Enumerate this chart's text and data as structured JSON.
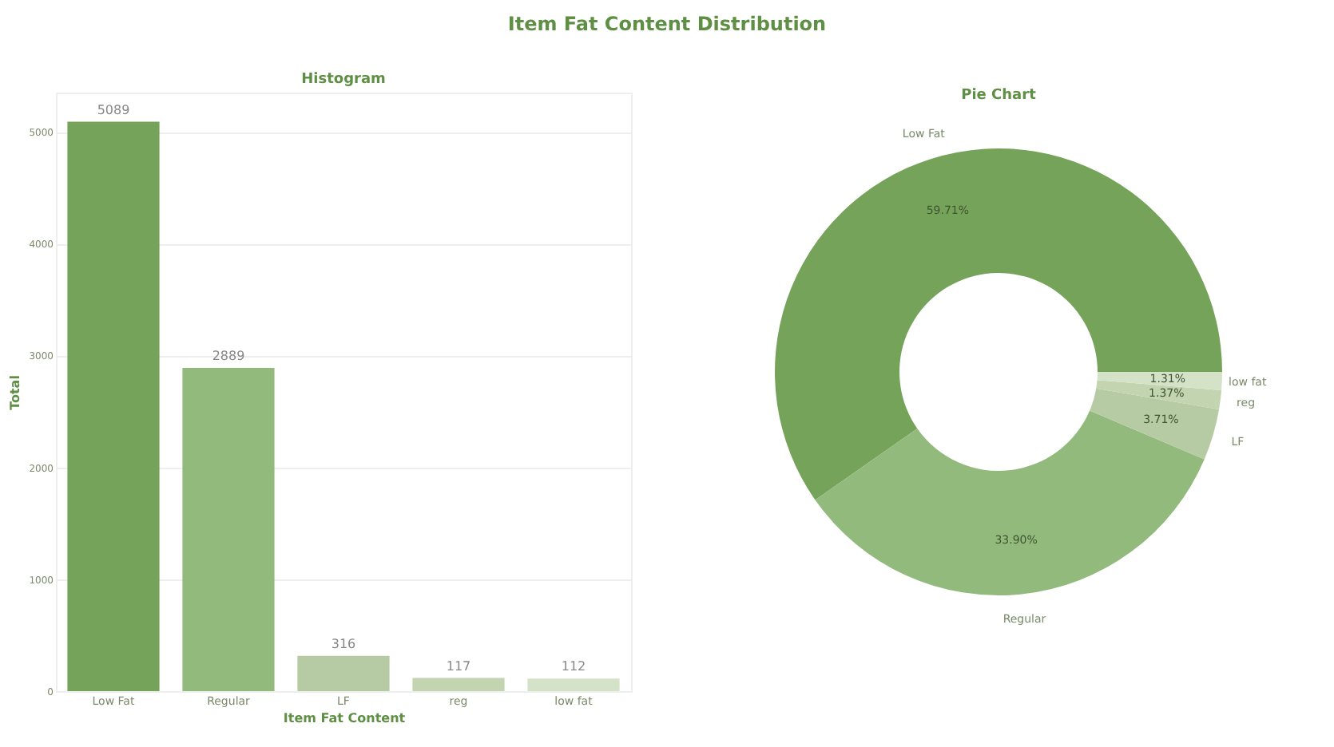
{
  "chart_data": [
    {
      "type": "other",
      "title": "Item Fat Content Distribution"
    },
    {
      "type": "bar",
      "title": "Histogram",
      "xlabel": "Item Fat Content",
      "ylabel": "Total",
      "categories": [
        "Low Fat",
        "Regular",
        "LF",
        "reg",
        "low fat"
      ],
      "values": [
        5089,
        2889,
        316,
        117,
        112
      ],
      "colors": [
        "#76a35a",
        "#93ba7d",
        "#b6cba3",
        "#c2d4b0",
        "#d4e2c8"
      ],
      "ylim": [
        0,
        5350
      ],
      "yticks": [
        0,
        1000,
        2000,
        3000,
        4000,
        5000
      ],
      "grid": "y",
      "data_labels": true
    },
    {
      "type": "donut",
      "title": "Pie Chart",
      "categories": [
        "Low Fat",
        "Regular",
        "LF",
        "reg",
        "low fat"
      ],
      "values": [
        59.71,
        33.9,
        3.71,
        1.37,
        1.31
      ],
      "value_labels": [
        "59.71%",
        "33.90%",
        "3.71%",
        "1.37%",
        "1.31%"
      ],
      "colors": [
        "#76a35a",
        "#93ba7d",
        "#b6cba3",
        "#c2d4b0",
        "#d4e2c8"
      ]
    }
  ]
}
